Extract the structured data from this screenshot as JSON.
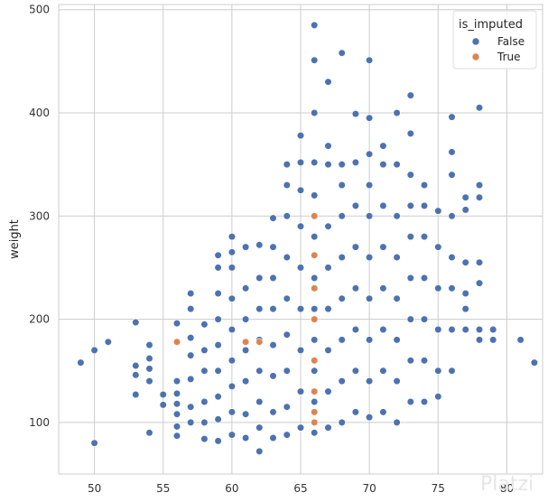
{
  "chart_data": {
    "type": "scatter",
    "xlabel": "",
    "ylabel": "weight",
    "xlim": [
      47.4,
      82.6
    ],
    "ylim": [
      50,
      505
    ],
    "xticks": [
      50,
      55,
      60,
      65,
      70,
      75,
      80
    ],
    "yticks": [
      100,
      200,
      300,
      400,
      500
    ],
    "grid": true,
    "legend": {
      "title": "is_imputed",
      "placement": "top-right"
    },
    "colors": {
      "False": "#4c72b0",
      "True": "#dd8452"
    },
    "series": [
      {
        "name": "False",
        "color": "#4c72b0",
        "points": [
          [
            49,
            158
          ],
          [
            50,
            80
          ],
          [
            50,
            170
          ],
          [
            51,
            178
          ],
          [
            53,
            127
          ],
          [
            53,
            146
          ],
          [
            53,
            155
          ],
          [
            53,
            197
          ],
          [
            54,
            90
          ],
          [
            54,
            140
          ],
          [
            54,
            152
          ],
          [
            54,
            162
          ],
          [
            54,
            175
          ],
          [
            55,
            117
          ],
          [
            55,
            127
          ],
          [
            56,
            87
          ],
          [
            56,
            96
          ],
          [
            56,
            108
          ],
          [
            56,
            118
          ],
          [
            56,
            128
          ],
          [
            56,
            140
          ],
          [
            56,
            196
          ],
          [
            57,
            100
          ],
          [
            57,
            115
          ],
          [
            57,
            142
          ],
          [
            57,
            165
          ],
          [
            57,
            182
          ],
          [
            57,
            210
          ],
          [
            57,
            225
          ],
          [
            58,
            84
          ],
          [
            58,
            100
          ],
          [
            58,
            120
          ],
          [
            58,
            150
          ],
          [
            58,
            170
          ],
          [
            58,
            195
          ],
          [
            59,
            82
          ],
          [
            59,
            103
          ],
          [
            59,
            125
          ],
          [
            59,
            150
          ],
          [
            59,
            175
          ],
          [
            59,
            200
          ],
          [
            59,
            225
          ],
          [
            59,
            250
          ],
          [
            59,
            262
          ],
          [
            60,
            88
          ],
          [
            60,
            110
          ],
          [
            60,
            135
          ],
          [
            60,
            160
          ],
          [
            60,
            190
          ],
          [
            60,
            220
          ],
          [
            60,
            250
          ],
          [
            60,
            265
          ],
          [
            60,
            280
          ],
          [
            61,
            85
          ],
          [
            61,
            108
          ],
          [
            61,
            140
          ],
          [
            61,
            170
          ],
          [
            61,
            200
          ],
          [
            61,
            230
          ],
          [
            61,
            270
          ],
          [
            62,
            72
          ],
          [
            62,
            95
          ],
          [
            62,
            120
          ],
          [
            62,
            150
          ],
          [
            62,
            180
          ],
          [
            62,
            210
          ],
          [
            62,
            240
          ],
          [
            62,
            272
          ],
          [
            63,
            85
          ],
          [
            63,
            110
          ],
          [
            63,
            145
          ],
          [
            63,
            175
          ],
          [
            63,
            210
          ],
          [
            63,
            240
          ],
          [
            63,
            270
          ],
          [
            63,
            298
          ],
          [
            64,
            88
          ],
          [
            64,
            115
          ],
          [
            64,
            150
          ],
          [
            64,
            185
          ],
          [
            64,
            220
          ],
          [
            64,
            260
          ],
          [
            64,
            300
          ],
          [
            64,
            330
          ],
          [
            64,
            350
          ],
          [
            65,
            95
          ],
          [
            65,
            130
          ],
          [
            65,
            170
          ],
          [
            65,
            210
          ],
          [
            65,
            250
          ],
          [
            65,
            290
          ],
          [
            65,
            325
          ],
          [
            65,
            352
          ],
          [
            65,
            378
          ],
          [
            66,
            90
          ],
          [
            66,
            120
          ],
          [
            66,
            150
          ],
          [
            66,
            180
          ],
          [
            66,
            210
          ],
          [
            66,
            240
          ],
          [
            66,
            280
          ],
          [
            66,
            320
          ],
          [
            66,
            352
          ],
          [
            66,
            400
          ],
          [
            66,
            451
          ],
          [
            66,
            485
          ],
          [
            67,
            95
          ],
          [
            67,
            130
          ],
          [
            67,
            170
          ],
          [
            67,
            210
          ],
          [
            67,
            250
          ],
          [
            67,
            290
          ],
          [
            67,
            350
          ],
          [
            67,
            368
          ],
          [
            67,
            430
          ],
          [
            68,
            100
          ],
          [
            68,
            140
          ],
          [
            68,
            180
          ],
          [
            68,
            220
          ],
          [
            68,
            260
          ],
          [
            68,
            300
          ],
          [
            68,
            330
          ],
          [
            68,
            350
          ],
          [
            68,
            458
          ],
          [
            69,
            110
          ],
          [
            69,
            150
          ],
          [
            69,
            190
          ],
          [
            69,
            230
          ],
          [
            69,
            270
          ],
          [
            69,
            310
          ],
          [
            69,
            352
          ],
          [
            69,
            399
          ],
          [
            70,
            105
          ],
          [
            70,
            140
          ],
          [
            70,
            180
          ],
          [
            70,
            220
          ],
          [
            70,
            260
          ],
          [
            70,
            300
          ],
          [
            70,
            330
          ],
          [
            70,
            360
          ],
          [
            70,
            395
          ],
          [
            70,
            451
          ],
          [
            71,
            110
          ],
          [
            71,
            150
          ],
          [
            71,
            190
          ],
          [
            71,
            230
          ],
          [
            71,
            270
          ],
          [
            71,
            310
          ],
          [
            71,
            350
          ],
          [
            71,
            368
          ],
          [
            72,
            100
          ],
          [
            72,
            140
          ],
          [
            72,
            180
          ],
          [
            72,
            220
          ],
          [
            72,
            260
          ],
          [
            72,
            300
          ],
          [
            72,
            350
          ],
          [
            72,
            400
          ],
          [
            73,
            120
          ],
          [
            73,
            160
          ],
          [
            73,
            200
          ],
          [
            73,
            240
          ],
          [
            73,
            280
          ],
          [
            73,
            310
          ],
          [
            73,
            340
          ],
          [
            73,
            380
          ],
          [
            73,
            417
          ],
          [
            74,
            120
          ],
          [
            74,
            160
          ],
          [
            74,
            200
          ],
          [
            74,
            240
          ],
          [
            74,
            280
          ],
          [
            74,
            310
          ],
          [
            74,
            330
          ],
          [
            75,
            125
          ],
          [
            75,
            150
          ],
          [
            75,
            190
          ],
          [
            75,
            230
          ],
          [
            75,
            270
          ],
          [
            75,
            305
          ],
          [
            76,
            150
          ],
          [
            76,
            190
          ],
          [
            76,
            230
          ],
          [
            76,
            260
          ],
          [
            76,
            300
          ],
          [
            76,
            340
          ],
          [
            76,
            362
          ],
          [
            76,
            396
          ],
          [
            77,
            190
          ],
          [
            77,
            210
          ],
          [
            77,
            225
          ],
          [
            77,
            255
          ],
          [
            77,
            318
          ],
          [
            77,
            306
          ],
          [
            78,
            180
          ],
          [
            78,
            190
          ],
          [
            78,
            235
          ],
          [
            78,
            255
          ],
          [
            78,
            318
          ],
          [
            78,
            330
          ],
          [
            78,
            405
          ],
          [
            79,
            180
          ],
          [
            79,
            190
          ],
          [
            81,
            180
          ],
          [
            82,
            158
          ]
        ]
      },
      {
        "name": "True",
        "color": "#dd8452",
        "points": [
          [
            56,
            178
          ],
          [
            61,
            178
          ],
          [
            62,
            178
          ],
          [
            66,
            100
          ],
          [
            66,
            110
          ],
          [
            66,
            130
          ],
          [
            66,
            160
          ],
          [
            66,
            200
          ],
          [
            66,
            230
          ],
          [
            66,
            262
          ],
          [
            66,
            300
          ]
        ]
      }
    ]
  },
  "watermark": "Platzi"
}
